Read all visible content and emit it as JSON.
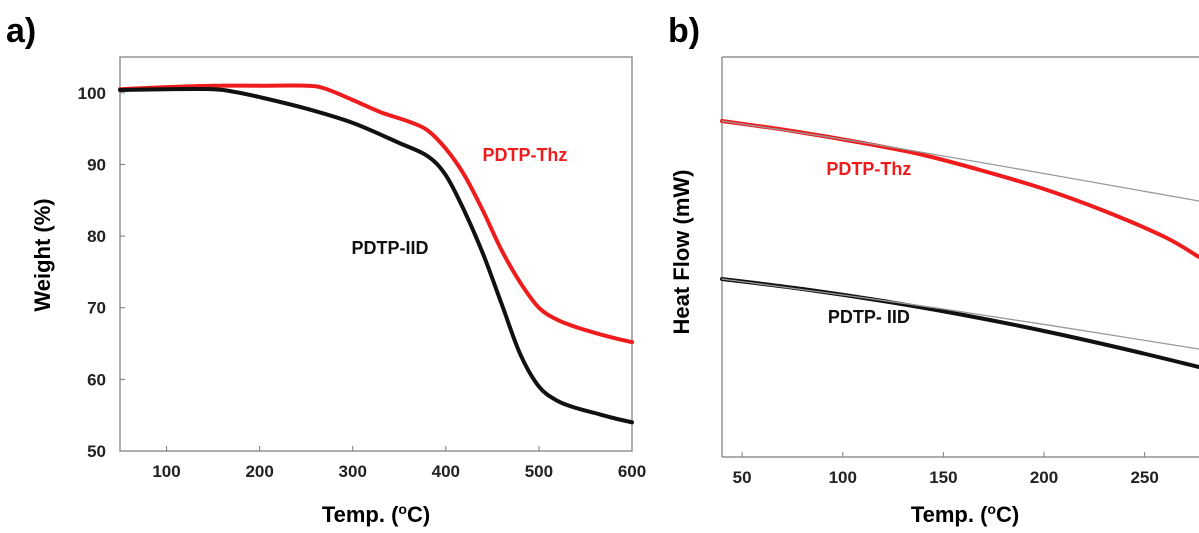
{
  "chart_data": [
    {
      "panel": "a)",
      "type": "line",
      "xlabel": "Temp. (",
      "xlabel_sup": "o",
      "xlabel_end": "C)",
      "ylabel": "Weight (%)",
      "xlim": [
        50,
        600
      ],
      "ylim": [
        50,
        105
      ],
      "xticks": [
        "100",
        "200",
        "300",
        "400",
        "500",
        "600"
      ],
      "yticks": [
        "50",
        "60",
        "70",
        "80",
        "90",
        "100"
      ],
      "series": [
        {
          "name": "PDTP-Thz",
          "color": "#ee1c1c",
          "x": [
            50,
            100,
            150,
            200,
            250,
            270,
            300,
            330,
            360,
            380,
            400,
            420,
            440,
            460,
            480,
            500,
            520,
            540,
            560,
            580,
            600
          ],
          "y": [
            100.5,
            100.8,
            101.0,
            101.0,
            101.0,
            100.6,
            99.0,
            97.3,
            96.0,
            94.8,
            92.2,
            88.5,
            83.5,
            78.0,
            73.5,
            70.0,
            68.3,
            67.3,
            66.5,
            65.8,
            65.2
          ]
        },
        {
          "name": "PDTP-IID",
          "color": "#111111",
          "x": [
            50,
            100,
            150,
            170,
            200,
            250,
            300,
            350,
            380,
            400,
            420,
            440,
            460,
            480,
            500,
            520,
            540,
            560,
            580,
            600
          ],
          "y": [
            100.4,
            100.5,
            100.5,
            100.2,
            99.4,
            97.8,
            95.8,
            93.0,
            91.2,
            88.5,
            83.5,
            77.5,
            70.5,
            63.5,
            59.0,
            57.0,
            56.0,
            55.3,
            54.6,
            54.0
          ]
        }
      ],
      "annotations": [
        {
          "text": "PDTP-Thz",
          "x": 485,
          "y": 90.5,
          "color": "#ee1c1c"
        },
        {
          "text": "PDTP-IID",
          "x": 340,
          "y": 77.5,
          "color": "#111111"
        }
      ]
    },
    {
      "panel": "b)",
      "type": "line",
      "xlabel": "Temp. (",
      "xlabel_sup": "o",
      "xlabel_end": "C)",
      "ylabel": "Heat Flow (mW)",
      "xlim": [
        40,
        277
      ],
      "ylim": [
        0,
        100
      ],
      "xticks": [
        "50",
        "100",
        "150",
        "200",
        "250"
      ],
      "yticks": [],
      "series": [
        {
          "name": "PDTP-Thz",
          "color": "#ee1c1c",
          "x": [
            40,
            75,
            110,
            140,
            170,
            200,
            230,
            260,
            277
          ],
          "y": [
            84,
            81.5,
            78.5,
            75.5,
            71.5,
            67,
            61.5,
            55,
            50
          ]
        },
        {
          "name": "PDTP-Thz baseline",
          "color": "#999999",
          "x": [
            40,
            130,
            277
          ],
          "y": [
            84,
            77,
            64
          ]
        },
        {
          "name": "PDTP-IID",
          "color": "#111111",
          "x": [
            40,
            80,
            120,
            160,
            200,
            240,
            277
          ],
          "y": [
            44.5,
            42,
            39,
            35.5,
            31.5,
            27,
            22.5
          ]
        },
        {
          "name": "PDTP-IID baseline",
          "color": "#999999",
          "x": [
            40,
            150,
            277
          ],
          "y": [
            44.5,
            37,
            27
          ]
        }
      ],
      "annotations": [
        {
          "text": "PDTP-Thz",
          "x": 113,
          "y": 70.5,
          "color": "#ee1c1c"
        },
        {
          "text": "PDTP- IID",
          "x": 113,
          "y": 33.5,
          "color": "#111111"
        }
      ]
    }
  ]
}
